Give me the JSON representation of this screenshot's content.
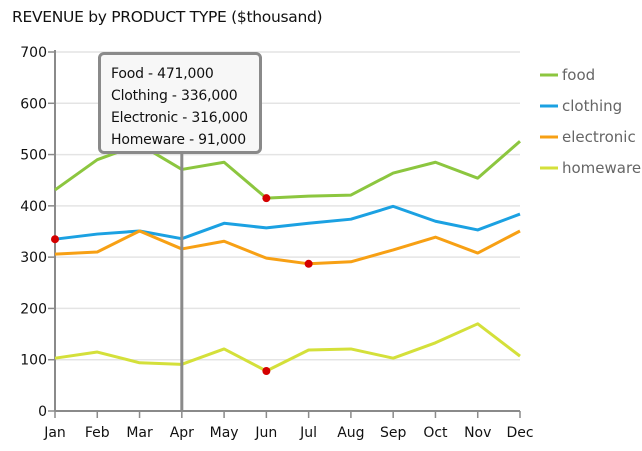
{
  "chart_data": {
    "type": "line",
    "title": "REVENUE by PRODUCT TYPE ($thousand)",
    "xlabel": "",
    "ylabel": "",
    "categories": [
      "Jan",
      "Feb",
      "Mar",
      "Apr",
      "May",
      "Jun",
      "Jul",
      "Aug",
      "Sep",
      "Oct",
      "Nov",
      "Dec"
    ],
    "ylim": [
      0,
      700
    ],
    "yticks": [
      0,
      100,
      200,
      300,
      400,
      500,
      600,
      700
    ],
    "grid": true,
    "legend_position": "right",
    "series": [
      {
        "name": "food",
        "color": "#8cc63f",
        "values": [
          431,
          490,
          520,
          471,
          485,
          415,
          419,
          421,
          464,
          485,
          454,
          526
        ]
      },
      {
        "name": "clothing",
        "color": "#1ba1e2",
        "values": [
          335,
          345,
          351,
          336,
          366,
          357,
          366,
          374,
          399,
          370,
          353,
          384
        ]
      },
      {
        "name": "electronic",
        "color": "#f7a014",
        "values": [
          306,
          310,
          351,
          316,
          331,
          298,
          287,
          291,
          314,
          339,
          308,
          351
        ]
      },
      {
        "name": "homeware",
        "color": "#d4e03a",
        "values": [
          103,
          115,
          94,
          91,
          121,
          78,
          119,
          121,
          103,
          133,
          170,
          107
        ]
      }
    ],
    "markers": [
      {
        "series": "clothing",
        "category": "Jan",
        "color": "#d40000"
      },
      {
        "series": "food",
        "category": "Jun",
        "color": "#d40000"
      },
      {
        "series": "electronic",
        "category": "Jul",
        "color": "#d40000"
      },
      {
        "series": "homeware",
        "category": "Jun",
        "color": "#d40000"
      }
    ],
    "crosshair_category": "Apr",
    "tooltip": {
      "lines": [
        "Food - 471,000",
        "Clothing - 336,000",
        "Electronic - 316,000",
        "Homeware - 91,000"
      ]
    }
  }
}
